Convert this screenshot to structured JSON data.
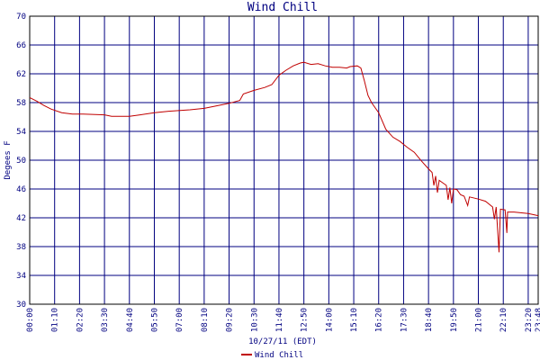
{
  "chart_data": {
    "type": "line",
    "title": "Wind Chill",
    "xlabel": "10/27/11 (EDT)",
    "ylabel": "Degees F",
    "x": [
      0,
      20,
      40,
      60,
      90,
      120,
      150,
      210,
      230,
      280,
      310,
      350,
      390,
      450,
      490,
      520,
      560,
      590,
      600,
      630,
      660,
      680,
      700,
      720,
      740,
      760,
      770,
      790,
      810,
      830,
      850,
      870,
      890,
      900,
      920,
      930,
      940,
      950,
      960,
      980,
      1000,
      1020,
      1040,
      1060,
      1080,
      1100,
      1120,
      1130,
      1135,
      1140,
      1145,
      1150,
      1170,
      1175,
      1180,
      1185,
      1190,
      1200,
      1210,
      1220,
      1230,
      1235,
      1260,
      1280,
      1300,
      1305,
      1310,
      1318,
      1322,
      1335,
      1340,
      1342,
      1360,
      1400,
      1428
    ],
    "series": [
      {
        "name": "Wind Chill",
        "color": "#c00000",
        "values": [
          58.7,
          58.2,
          57.6,
          57.1,
          56.6,
          56.4,
          56.4,
          56.3,
          56.1,
          56.1,
          56.3,
          56.6,
          56.8,
          57.0,
          57.2,
          57.5,
          57.9,
          58.3,
          59.2,
          59.7,
          60.1,
          60.5,
          61.8,
          62.5,
          63.1,
          63.5,
          63.6,
          63.3,
          63.4,
          63.1,
          62.9,
          62.9,
          62.8,
          63.0,
          63.1,
          62.8,
          61.0,
          59.0,
          58.0,
          56.6,
          54.3,
          53.2,
          52.6,
          51.8,
          51.1,
          49.9,
          48.8,
          48.3,
          46.5,
          47.8,
          45.5,
          47.2,
          46.5,
          44.5,
          46.2,
          44.0,
          46.0,
          45.9,
          45.2,
          45.0,
          43.7,
          44.9,
          44.6,
          44.3,
          43.5,
          41.8,
          43.5,
          37.2,
          43.2,
          43.1,
          39.9,
          42.8,
          42.8,
          42.6,
          42.3
        ]
      }
    ],
    "xlim": [
      0,
      1428
    ],
    "xticks": [
      {
        "value": 0,
        "label": "00:00"
      },
      {
        "value": 70,
        "label": "01:10"
      },
      {
        "value": 140,
        "label": "02:20"
      },
      {
        "value": 210,
        "label": "03:30"
      },
      {
        "value": 280,
        "label": "04:40"
      },
      {
        "value": 350,
        "label": "05:50"
      },
      {
        "value": 420,
        "label": "07:00"
      },
      {
        "value": 490,
        "label": "08:10"
      },
      {
        "value": 560,
        "label": "09:20"
      },
      {
        "value": 630,
        "label": "10:30"
      },
      {
        "value": 700,
        "label": "11:40"
      },
      {
        "value": 770,
        "label": "12:50"
      },
      {
        "value": 840,
        "label": "14:00"
      },
      {
        "value": 910,
        "label": "15:10"
      },
      {
        "value": 980,
        "label": "16:20"
      },
      {
        "value": 1050,
        "label": "17:30"
      },
      {
        "value": 1120,
        "label": "18:40"
      },
      {
        "value": 1190,
        "label": "19:50"
      },
      {
        "value": 1260,
        "label": "21:00"
      },
      {
        "value": 1330,
        "label": "22:10"
      },
      {
        "value": 1400,
        "label": "23:20"
      },
      {
        "value": 1428,
        "label": "23:48"
      }
    ],
    "ylim": [
      30,
      70
    ],
    "yticks": [
      30,
      34,
      38,
      42,
      46,
      50,
      54,
      58,
      62,
      66,
      70
    ],
    "grid": true,
    "legend": "bottom"
  }
}
